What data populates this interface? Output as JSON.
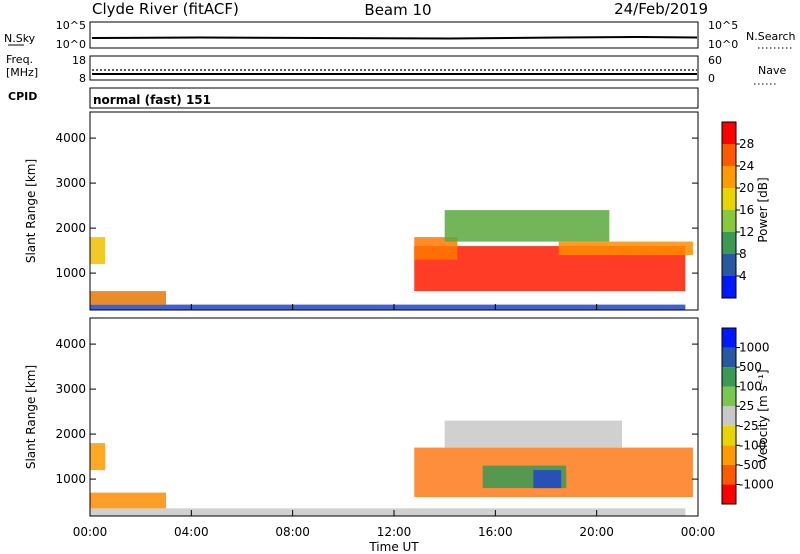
{
  "header": {
    "station": "Clyde River (fitACF)",
    "beam": "Beam 10",
    "date": "24/Feb/2019"
  },
  "nsky_panel": {
    "left_label": "N.Sky",
    "left_ticks": [
      "10^5",
      "10^0"
    ],
    "right_ticks": [
      "10^5",
      "10^0"
    ],
    "right_label": "N.Search",
    "right_legend_line": "dotted"
  },
  "freq_panel": {
    "left_label_1": "Freq.",
    "left_label_2": "[MHz]",
    "left_ticks": [
      "18",
      "8"
    ],
    "right_ticks": [
      "60",
      "0"
    ],
    "right_label": "Nave",
    "right_legend_line": "dotted"
  },
  "cpid_panel": {
    "label": "CPID",
    "text": "normal (fast) 151"
  },
  "chart_data": [
    {
      "type": "heatmap",
      "name": "power",
      "ylabel": "Slant Range [km]",
      "yticks": [
        "4000",
        "3000",
        "2000",
        "1000"
      ],
      "yrange_km": [
        180,
        4580
      ],
      "xticks": [
        "00:00",
        "04:00",
        "08:00",
        "12:00",
        "16:00",
        "20:00",
        "00:00"
      ],
      "xrange_hours": [
        0,
        24
      ],
      "colorbar": {
        "label": "Power [dB]",
        "ticks": [
          "28",
          "24",
          "20",
          "16",
          "12",
          "8",
          "4"
        ],
        "colors_top_to_bottom": [
          "#ff0000",
          "#ff5a00",
          "#ff9a00",
          "#e8d400",
          "#88c83c",
          "#3a9a54",
          "#2a58a0",
          "#0018ff"
        ]
      },
      "regions": [
        {
          "t": [
            12.8,
            23.5
          ],
          "r": [
            600,
            1600
          ],
          "color": "#ff1a00"
        },
        {
          "t": [
            12.8,
            14.5
          ],
          "r": [
            1300,
            1800
          ],
          "color": "#ff7800"
        },
        {
          "t": [
            14.0,
            20.5
          ],
          "r": [
            1700,
            2400
          ],
          "color": "#5aa83c"
        },
        {
          "t": [
            18.5,
            23.8
          ],
          "r": [
            1400,
            1700
          ],
          "color": "#ff8c00"
        },
        {
          "t": [
            0.0,
            23.5
          ],
          "r": [
            180,
            300
          ],
          "color": "#1e44c8"
        },
        {
          "t": [
            0.0,
            3.0
          ],
          "r": [
            300,
            600
          ],
          "color": "#e87800"
        },
        {
          "t": [
            0.0,
            0.6
          ],
          "r": [
            1200,
            1800
          ],
          "color": "#f0c000"
        }
      ]
    },
    {
      "type": "heatmap",
      "name": "velocity",
      "ylabel": "Slant Range [km]",
      "yticks": [
        "4000",
        "3000",
        "2000",
        "1000"
      ],
      "yrange_km": [
        180,
        4580
      ],
      "xticks": [
        "00:00",
        "04:00",
        "08:00",
        "12:00",
        "16:00",
        "20:00",
        "00:00"
      ],
      "xlabel": "Time UT",
      "xrange_hours": [
        0,
        24
      ],
      "colorbar": {
        "label": "Velocity [m s⁻¹]",
        "ticks": [
          "1000",
          "500",
          "100",
          "25",
          "-25",
          "-100",
          "-500",
          "-1000"
        ],
        "colors_top_to_bottom": [
          "#0018ff",
          "#2a58a0",
          "#3a9a54",
          "#78c850",
          "#c8c8c8",
          "#e8d400",
          "#ff9a00",
          "#ff5a00",
          "#ff0000"
        ]
      },
      "regions": [
        {
          "t": [
            12.8,
            23.8
          ],
          "r": [
            600,
            1700
          ],
          "color": "#ff7a1a"
        },
        {
          "t": [
            15.5,
            18.8
          ],
          "r": [
            800,
            1300
          ],
          "color": "#3a9a54"
        },
        {
          "t": [
            17.5,
            18.6
          ],
          "r": [
            800,
            1200
          ],
          "color": "#1e44c8"
        },
        {
          "t": [
            14.0,
            21.0
          ],
          "r": [
            1700,
            2300
          ],
          "color": "#c8c8c8"
        },
        {
          "t": [
            0.0,
            23.5
          ],
          "r": [
            180,
            350
          ],
          "color": "#c8c8c8"
        },
        {
          "t": [
            0.0,
            3.0
          ],
          "r": [
            350,
            700
          ],
          "color": "#ff8c00"
        },
        {
          "t": [
            0.0,
            0.6
          ],
          "r": [
            1200,
            1800
          ],
          "color": "#ff9a00"
        }
      ]
    }
  ]
}
